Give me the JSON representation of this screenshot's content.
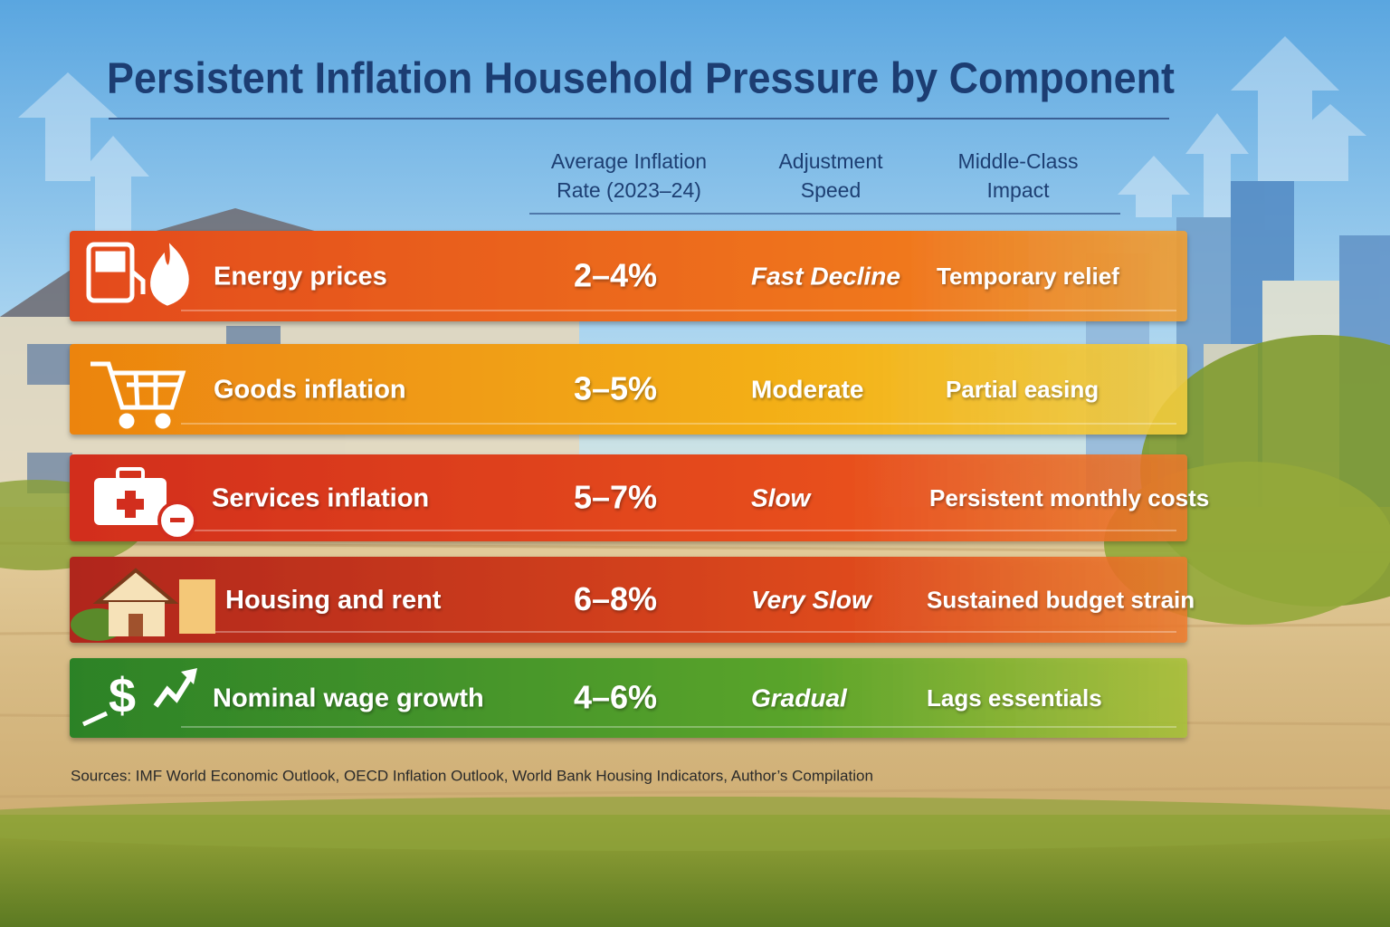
{
  "title": "Persistent Inflation Household Pressure by Component",
  "table": {
    "headers": [
      "Average Inflation Rate (2023–24)",
      "Adjustment Speed",
      "Middle-Class Impact"
    ],
    "rows": [
      [
        "Energy prices",
        "2–4%",
        "Fast Decline",
        "Temporary relief"
      ],
      [
        "Goods inflation",
        "3–5%",
        "Moderate",
        "Partial easing"
      ],
      [
        "Services inflation",
        "5–7%",
        "Slow",
        "Persistent monthly costs"
      ],
      [
        "Housing and rent",
        "6–8%",
        "Very Slow",
        "Sustained budget strain"
      ],
      [
        "Nominal wage growth",
        "4–6%",
        "Gradual",
        "Lags essentials"
      ]
    ]
  },
  "sources": "Sources: IMF World Economic Outlook, OECD Inflation Outlook, World Bank Housing Indicators, Author’s Compilation"
}
